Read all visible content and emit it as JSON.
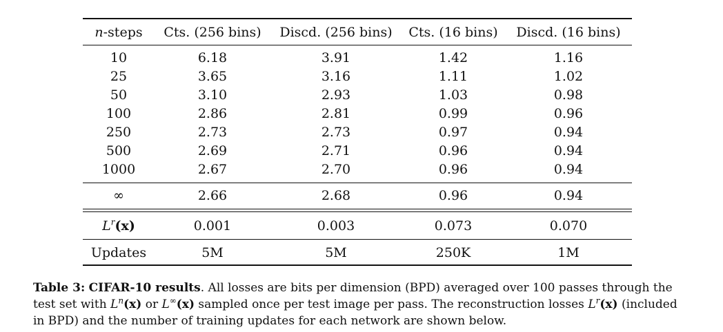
{
  "table": {
    "headers": [
      "n-steps",
      "Cts. (256 bins)",
      "Discd. (256 bins)",
      "Cts. (16 bins)",
      "Discd. (16 bins)"
    ],
    "header_n": "n",
    "header_steps": "-steps",
    "rows": [
      [
        "10",
        "6.18",
        "3.91",
        "1.42",
        "1.16"
      ],
      [
        "25",
        "3.65",
        "3.16",
        "1.11",
        "1.02"
      ],
      [
        "50",
        "3.10",
        "2.93",
        "1.03",
        "0.98"
      ],
      [
        "100",
        "2.86",
        "2.81",
        "0.99",
        "0.96"
      ],
      [
        "250",
        "2.73",
        "2.73",
        "0.97",
        "0.94"
      ],
      [
        "500",
        "2.69",
        "2.71",
        "0.96",
        "0.94"
      ],
      [
        "1000",
        "2.67",
        "2.70",
        "0.96",
        "0.94"
      ]
    ],
    "infinity_row": [
      "∞",
      "2.66",
      "2.68",
      "0.96",
      "0.94"
    ],
    "recon_row": {
      "label_L": "L",
      "label_sup": "r",
      "label_x": "(x)",
      "values": [
        "0.001",
        "0.003",
        "0.073",
        "0.070"
      ]
    },
    "updates_row": [
      "Updates",
      "5M",
      "5M",
      "250K",
      "1M"
    ]
  },
  "caption": {
    "label": "Table 3:",
    "title": "CIFAR-10 results",
    "text_1": ". All losses are bits per dimension (BPD) averaged over 100 passes through the test set with ",
    "Ln": "L",
    "Ln_sup": "n",
    "x1": "(x)",
    "or": " or ",
    "Linf": "L",
    "Linf_sup": "∞",
    "x2": "(x)",
    "text_2": " sampled once per test image per pass. The reconstruction losses ",
    "Lr": "L",
    "Lr_sup": "r",
    "x3": "(x)",
    "text_3": " (included in BPD) and the number of training updates for each network are shown below."
  }
}
